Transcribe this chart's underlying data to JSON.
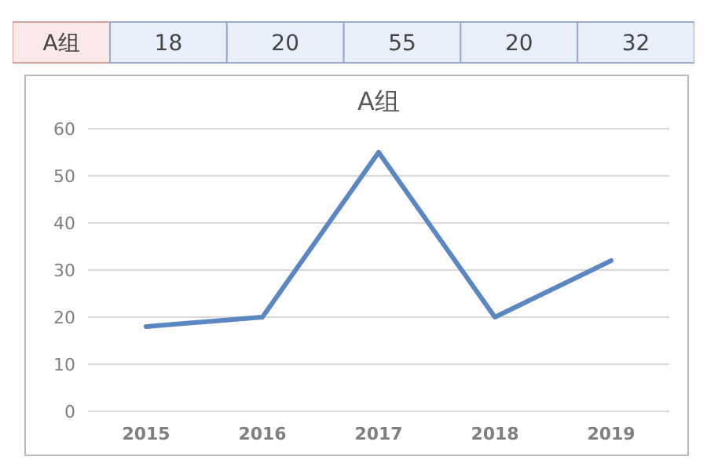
{
  "chart_data": {
    "type": "line",
    "title": "A组",
    "categories": [
      "2015",
      "2016",
      "2017",
      "2018",
      "2019"
    ],
    "series": [
      {
        "name": "A组",
        "color": "#5a86c2",
        "values": [
          18,
          20,
          55,
          20,
          32
        ]
      }
    ],
    "ylim": [
      0,
      60
    ],
    "yticks": [
      0,
      10,
      20,
      30,
      40,
      50,
      60
    ],
    "grid": "y",
    "data_labels": true,
    "marker": "none",
    "line_style": "solid"
  }
}
